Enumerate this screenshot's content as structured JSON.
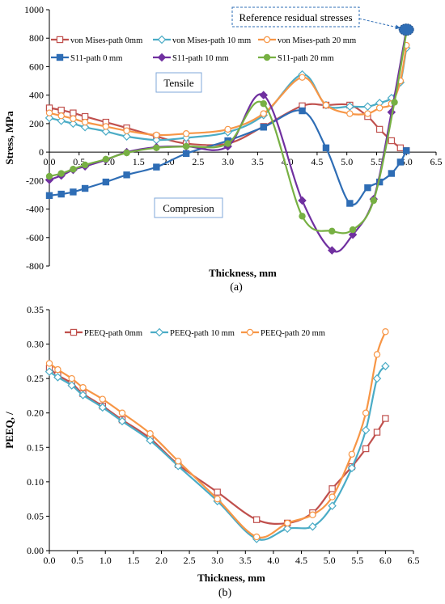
{
  "chart_data": [
    {
      "type": "line",
      "caption": "(a)",
      "xlabel": "Thickness, mm",
      "ylabel": "Stress, MPa",
      "xlim": [
        0.0,
        6.5
      ],
      "ylim": [
        -800,
        1000
      ],
      "xticks": [
        "0.0",
        "0.5",
        "1.0",
        "1.5",
        "2.0",
        "2.5",
        "3.0",
        "3.5",
        "4.0",
        "4.5",
        "5.0",
        "5.5",
        "6.0",
        "6.5"
      ],
      "yticks": [
        "-800",
        "-600",
        "-400",
        "-200",
        "0",
        "200",
        "400",
        "600",
        "800",
        "1000"
      ],
      "grid": false,
      "legend_position": "top",
      "annotations": {
        "reference": "Reference residual stresses",
        "tensile": "Tensile",
        "compression": "Compresion"
      },
      "reference_point": {
        "x": 6.0,
        "y": 860
      },
      "series": [
        {
          "name": "von Mises-path 0mm",
          "color": "#c0504d",
          "marker": "square-open",
          "x": [
            0.0,
            0.2,
            0.4,
            0.6,
            0.95,
            1.3,
            1.8,
            2.3,
            3.0,
            3.6,
            4.25,
            4.65,
            5.05,
            5.35,
            5.55,
            5.75,
            5.9,
            6.0
          ],
          "y": [
            310,
            295,
            275,
            250,
            210,
            170,
            110,
            60,
            60,
            180,
            325,
            330,
            330,
            250,
            160,
            80,
            30,
            10
          ]
        },
        {
          "name": "von Mises-path 10 mm",
          "color": "#4bacc6",
          "marker": "diamond-open",
          "x": [
            0.0,
            0.2,
            0.4,
            0.6,
            0.95,
            1.3,
            1.8,
            2.3,
            3.0,
            3.6,
            4.25,
            4.65,
            5.05,
            5.35,
            5.55,
            5.75,
            5.9,
            6.0
          ],
          "y": [
            240,
            220,
            200,
            175,
            145,
            110,
            85,
            100,
            140,
            260,
            545,
            330,
            320,
            320,
            345,
            380,
            490,
            730
          ]
        },
        {
          "name": "von Mises-path 20 mm",
          "color": "#f79646",
          "marker": "circle-open",
          "x": [
            0.0,
            0.2,
            0.4,
            0.6,
            0.95,
            1.3,
            1.8,
            2.3,
            3.0,
            3.6,
            4.25,
            4.65,
            5.05,
            5.35,
            5.55,
            5.75,
            5.9,
            6.0
          ],
          "y": [
            275,
            255,
            235,
            210,
            180,
            150,
            120,
            130,
            160,
            270,
            525,
            330,
            270,
            270,
            310,
            340,
            500,
            750
          ]
        },
        {
          "name": "S11-path 0 mm",
          "color": "#2e6db5",
          "marker": "square-filled",
          "x": [
            0.0,
            0.2,
            0.4,
            0.6,
            0.95,
            1.3,
            1.8,
            2.3,
            3.0,
            3.6,
            4.25,
            4.65,
            5.05,
            5.35,
            5.55,
            5.75,
            5.9,
            6.0
          ],
          "y": [
            -305,
            -295,
            -280,
            -255,
            -210,
            -160,
            -105,
            -10,
            80,
            175,
            290,
            30,
            -360,
            -250,
            -210,
            -150,
            -70,
            10
          ]
        },
        {
          "name": "S11-path 10 mm",
          "color": "#7030a0",
          "marker": "diamond-filled",
          "x": [
            0.0,
            0.2,
            0.4,
            0.6,
            0.95,
            1.3,
            1.8,
            2.3,
            3.0,
            3.6,
            4.25,
            4.75,
            5.1,
            5.45,
            5.75,
            6.0
          ],
          "y": [
            -195,
            -165,
            -125,
            -100,
            -55,
            0,
            35,
            40,
            40,
            400,
            -340,
            -690,
            -580,
            -330,
            280,
            860
          ]
        },
        {
          "name": "S11-path 20 mm",
          "color": "#77b043",
          "marker": "circle-filled",
          "x": [
            0.0,
            0.2,
            0.4,
            0.6,
            0.95,
            1.3,
            1.8,
            2.3,
            3.0,
            3.6,
            4.25,
            4.75,
            5.1,
            5.45,
            5.8,
            6.0
          ],
          "y": [
            -170,
            -150,
            -120,
            -90,
            -50,
            -5,
            30,
            40,
            60,
            340,
            -450,
            -555,
            -545,
            -340,
            350,
            840
          ]
        }
      ]
    },
    {
      "type": "line",
      "caption": "(b)",
      "xlabel": "Thickness, mm",
      "ylabel": "PEEQ, /",
      "xlim": [
        0.0,
        6.5
      ],
      "ylim": [
        0.0,
        0.35
      ],
      "xticks": [
        "0.0",
        "0.5",
        "1.0",
        "1.5",
        "2.0",
        "2.5",
        "3.0",
        "3.5",
        "4.0",
        "4.5",
        "5.0",
        "5.5",
        "6.0",
        "6.5"
      ],
      "yticks": [
        "0.00",
        "0.05",
        "0.10",
        "0.15",
        "0.20",
        "0.25",
        "0.30",
        "0.35"
      ],
      "grid": false,
      "legend_position": "top",
      "series": [
        {
          "name": "PEEQ-path 0mm",
          "color": "#c0504d",
          "marker": "square-open",
          "x": [
            0.0,
            0.15,
            0.4,
            0.6,
            0.95,
            1.3,
            1.8,
            2.3,
            3.0,
            3.7,
            4.25,
            4.7,
            5.05,
            5.4,
            5.65,
            5.85,
            6.0
          ],
          "y": [
            0.265,
            0.255,
            0.243,
            0.228,
            0.21,
            0.19,
            0.163,
            0.125,
            0.085,
            0.045,
            0.04,
            0.055,
            0.09,
            0.122,
            0.148,
            0.172,
            0.192
          ]
        },
        {
          "name": "PEEQ-path 10 mm",
          "color": "#4bacc6",
          "marker": "diamond-open",
          "x": [
            0.0,
            0.15,
            0.4,
            0.6,
            0.95,
            1.3,
            1.8,
            2.3,
            3.0,
            3.7,
            4.25,
            4.7,
            5.05,
            5.4,
            5.65,
            5.85,
            6.0
          ],
          "y": [
            0.26,
            0.252,
            0.24,
            0.226,
            0.208,
            0.188,
            0.16,
            0.123,
            0.072,
            0.017,
            0.032,
            0.035,
            0.065,
            0.12,
            0.175,
            0.25,
            0.268
          ]
        },
        {
          "name": "PEEQ-path 20 mm",
          "color": "#f79646",
          "marker": "circle-open",
          "x": [
            0.0,
            0.15,
            0.4,
            0.6,
            0.95,
            1.3,
            1.8,
            2.3,
            3.0,
            3.7,
            4.25,
            4.7,
            5.05,
            5.4,
            5.65,
            5.85,
            6.0
          ],
          "y": [
            0.272,
            0.263,
            0.25,
            0.237,
            0.22,
            0.2,
            0.17,
            0.13,
            0.075,
            0.02,
            0.04,
            0.052,
            0.078,
            0.14,
            0.2,
            0.285,
            0.318
          ]
        }
      ]
    }
  ]
}
